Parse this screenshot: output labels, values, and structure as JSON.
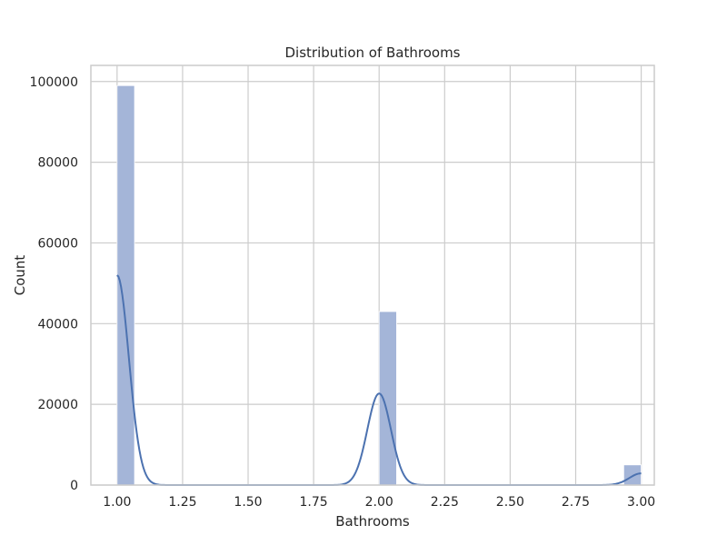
{
  "chart_data": {
    "type": "bar",
    "title": "Distribution of Bathrooms",
    "xlabel": "Bathrooms",
    "ylabel": "Count",
    "xlim": [
      0.9,
      3.05
    ],
    "ylim": [
      0,
      104000
    ],
    "xticks": [
      1.0,
      1.25,
      1.5,
      1.75,
      2.0,
      2.25,
      2.5,
      2.75,
      3.0
    ],
    "xtick_labels": [
      "1.00",
      "1.25",
      "1.50",
      "1.75",
      "2.00",
      "2.25",
      "2.50",
      "2.75",
      "3.00"
    ],
    "yticks": [
      0,
      20000,
      40000,
      60000,
      80000,
      100000
    ],
    "ytick_labels": [
      "0",
      "20000",
      "40000",
      "60000",
      "80000",
      "100000"
    ],
    "grid": true,
    "bar_color": "#a4b5d8",
    "kde_color": "#4c72b0",
    "bars": [
      {
        "x0": 1.0,
        "x1": 1.0667,
        "value": 99000
      },
      {
        "x0": 2.0,
        "x1": 2.0667,
        "value": 43000
      },
      {
        "x0": 2.9333,
        "x1": 3.0,
        "value": 5000
      }
    ],
    "kde": {
      "components": [
        {
          "mean": 1.0,
          "sd": 0.045,
          "peak": 52000
        },
        {
          "mean": 2.0,
          "sd": 0.045,
          "peak": 22700
        },
        {
          "mean": 3.0,
          "sd": 0.045,
          "peak": 2900
        }
      ],
      "x_range": [
        1.0,
        3.0
      ]
    }
  }
}
